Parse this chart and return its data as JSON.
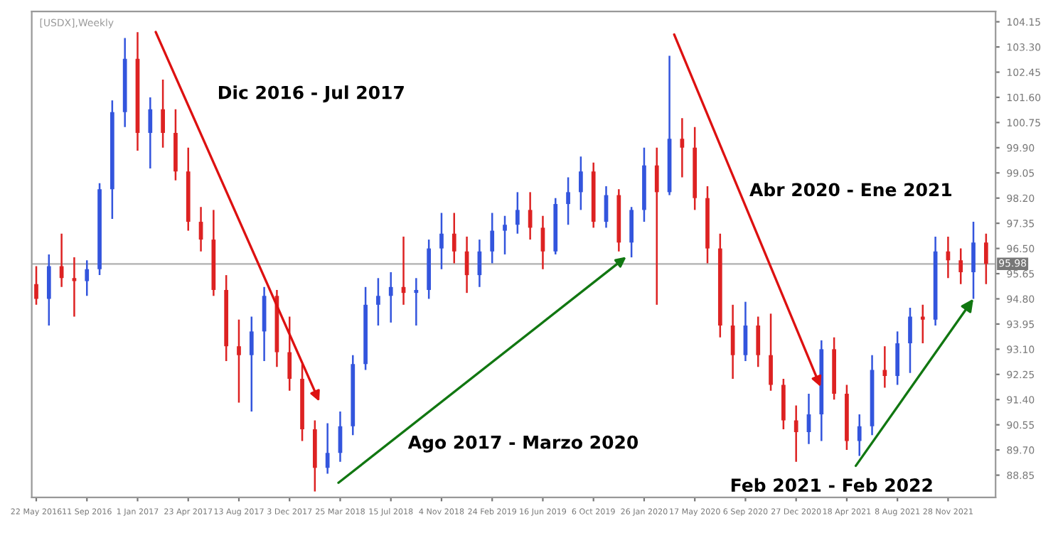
{
  "chart_data": {
    "type": "candlestick",
    "title": "[USDX],Weekly",
    "annotations": [
      "Dic 2016 - Jul 2017",
      "Abr 2020 - Ene 2021",
      "Ago 2017 - Marzo 2020",
      {
        "text": "Feb 2021 - Feb 2022",
        "x": "2022-01-23",
        "y": 94.8
      }
    ],
    "series": [
      {
        "color": "#3355dd",
        "x": [
          "2016-06-19",
          "2016-09-11",
          "2016-10-09",
          "2016-11-06",
          "2016-12-04",
          "2017-01-29",
          "2017-09-10",
          "2017-10-08",
          "2018-02-25",
          "2018-03-25",
          "2018-04-22",
          "2018-05-20",
          "2018-06-17",
          "2018-07-15",
          "2018-09-09",
          "2018-10-07",
          "2018-11-04",
          "2019-01-27",
          "2019-02-24",
          "2019-03-24",
          "2019-04-21",
          "2019-07-14",
          "2019-08-11",
          "2019-09-08",
          "2019-11-03",
          "2019-12-29",
          "2020-01-26",
          "2020-03-22",
          "2020-09-06",
          "2021-01-24",
          "2021-02-21",
          "2021-05-16",
          "2021-06-13",
          "2021-08-08",
          "2021-09-05",
          "2021-10-31",
          "2022-01-23"
        ],
        "ohlc": [
          [
            94.8,
            96.3,
            93.9,
            95.9
          ],
          [
            95.4,
            96.1,
            94.9,
            95.8
          ],
          [
            95.8,
            98.7,
            95.6,
            98.5
          ],
          [
            98.5,
            101.5,
            97.5,
            101.1
          ],
          [
            101.1,
            103.6,
            100.6,
            102.9
          ],
          [
            100.4,
            101.6,
            99.2,
            101.2
          ],
          [
            92.9,
            94.2,
            91.0,
            93.7
          ],
          [
            93.7,
            95.2,
            92.7,
            94.9
          ],
          [
            89.1,
            90.6,
            88.9,
            89.6
          ],
          [
            89.6,
            91.0,
            89.3,
            90.5
          ],
          [
            90.5,
            92.9,
            90.2,
            92.6
          ],
          [
            92.6,
            95.2,
            92.4,
            94.6
          ],
          [
            94.6,
            95.5,
            93.9,
            94.9
          ],
          [
            94.9,
            95.7,
            94.0,
            95.2
          ],
          [
            95.0,
            95.5,
            93.9,
            95.1
          ],
          [
            95.1,
            96.8,
            94.8,
            96.5
          ],
          [
            96.5,
            97.7,
            95.8,
            97.0
          ],
          [
            95.6,
            96.8,
            95.2,
            96.4
          ],
          [
            96.4,
            97.7,
            96.0,
            97.1
          ],
          [
            97.1,
            97.6,
            96.3,
            97.3
          ],
          [
            97.3,
            98.4,
            97.0,
            97.8
          ],
          [
            96.4,
            98.2,
            96.3,
            98.0
          ],
          [
            98.0,
            98.9,
            97.3,
            98.4
          ],
          [
            98.4,
            99.6,
            97.8,
            99.1
          ],
          [
            97.4,
            98.6,
            97.2,
            98.3
          ],
          [
            96.7,
            97.9,
            96.2,
            97.8
          ],
          [
            97.8,
            99.9,
            97.4,
            99.3
          ],
          [
            98.4,
            103.0,
            98.3,
            100.2
          ],
          [
            92.9,
            94.7,
            92.7,
            93.9
          ],
          [
            90.3,
            91.6,
            89.9,
            90.9
          ],
          [
            90.9,
            93.4,
            90.0,
            93.1
          ],
          [
            90.0,
            90.9,
            89.5,
            90.5
          ],
          [
            90.5,
            92.9,
            90.2,
            92.4
          ],
          [
            92.2,
            93.7,
            91.9,
            93.3
          ],
          [
            93.3,
            94.5,
            92.3,
            94.2
          ],
          [
            94.1,
            96.9,
            93.9,
            96.4
          ],
          [
            95.7,
            97.4,
            94.8,
            96.7
          ]
        ]
      },
      {
        "color": "#dd2222",
        "x": [
          "2016-05-22",
          "2016-07-17",
          "2016-08-14",
          "2017-01-01",
          "2017-02-26",
          "2017-03-26",
          "2017-04-23",
          "2017-05-21",
          "2017-06-18",
          "2017-07-16",
          "2017-08-13",
          "2017-11-05",
          "2017-12-03",
          "2017-12-31",
          "2018-01-28",
          "2018-08-12",
          "2018-12-02",
          "2018-12-30",
          "2019-05-19",
          "2019-06-16",
          "2019-10-06",
          "2019-12-01",
          "2020-02-23",
          "2020-04-19",
          "2020-05-17",
          "2020-06-14",
          "2020-07-12",
          "2020-08-09",
          "2020-10-04",
          "2020-11-01",
          "2020-11-29",
          "2020-12-27",
          "2021-03-21",
          "2021-04-18",
          "2021-07-11",
          "2021-10-03",
          "2021-11-28",
          "2021-12-26",
          "2022-02-20"
        ],
        "ohlc": [
          [
            95.3,
            95.9,
            94.6,
            94.8
          ],
          [
            95.9,
            97.0,
            95.2,
            95.5
          ],
          [
            95.5,
            96.2,
            94.2,
            95.4
          ],
          [
            102.9,
            103.8,
            99.8,
            100.4
          ],
          [
            101.2,
            102.2,
            99.9,
            100.4
          ],
          [
            100.4,
            101.2,
            98.8,
            99.1
          ],
          [
            99.1,
            99.9,
            97.1,
            97.4
          ],
          [
            97.4,
            97.9,
            96.4,
            96.8
          ],
          [
            96.8,
            97.8,
            94.9,
            95.1
          ],
          [
            95.1,
            95.6,
            92.7,
            93.2
          ],
          [
            93.2,
            94.1,
            91.3,
            92.9
          ],
          [
            94.9,
            95.1,
            92.5,
            93.0
          ],
          [
            93.0,
            94.2,
            91.7,
            92.1
          ],
          [
            92.1,
            92.6,
            90.0,
            90.4
          ],
          [
            90.4,
            90.7,
            88.3,
            89.1
          ],
          [
            95.2,
            96.9,
            94.6,
            95.0
          ],
          [
            97.0,
            97.7,
            96.0,
            96.4
          ],
          [
            96.4,
            96.9,
            95.0,
            95.6
          ],
          [
            97.8,
            98.4,
            96.8,
            97.2
          ],
          [
            97.2,
            97.6,
            95.8,
            96.4
          ],
          [
            99.1,
            99.4,
            97.2,
            97.4
          ],
          [
            98.3,
            98.5,
            96.4,
            96.7
          ],
          [
            99.3,
            99.9,
            94.6,
            98.4
          ],
          [
            100.2,
            100.9,
            98.9,
            99.9
          ],
          [
            99.9,
            100.6,
            97.8,
            98.2
          ],
          [
            98.2,
            98.6,
            96.0,
            96.5
          ],
          [
            96.5,
            97.0,
            93.5,
            93.9
          ],
          [
            93.9,
            94.6,
            92.1,
            92.9
          ],
          [
            93.9,
            94.2,
            92.5,
            92.9
          ],
          [
            92.9,
            94.3,
            91.7,
            91.9
          ],
          [
            91.9,
            92.1,
            90.4,
            90.7
          ],
          [
            90.7,
            91.2,
            89.3,
            90.3
          ],
          [
            93.1,
            93.5,
            91.4,
            91.6
          ],
          [
            91.6,
            91.9,
            89.7,
            90.0
          ],
          [
            92.4,
            93.2,
            91.8,
            92.2
          ],
          [
            94.2,
            94.6,
            93.3,
            94.1
          ],
          [
            96.4,
            96.9,
            95.5,
            96.1
          ],
          [
            96.1,
            96.5,
            95.3,
            95.7
          ],
          [
            96.7,
            97.0,
            95.3,
            95.98
          ]
        ]
      }
    ],
    "ylim": [
      88.1,
      104.5
    ],
    "yticks": [
      {
        "value": 104.15,
        "label": "104.15"
      },
      {
        "value": 103.3,
        "label": "103.30"
      },
      {
        "value": 102.45,
        "label": "102.45"
      },
      {
        "value": 101.6,
        "label": "101.60"
      },
      {
        "value": 100.75,
        "label": "100.75"
      },
      {
        "value": 99.9,
        "label": "99.90"
      },
      {
        "value": 99.05,
        "label": "99.05"
      },
      {
        "value": 98.2,
        "label": "98.20"
      },
      {
        "value": 97.35,
        "label": "97.35"
      },
      {
        "value": 96.5,
        "label": "96.50"
      },
      {
        "value": 95.65,
        "label": "95.65"
      },
      {
        "value": 94.8,
        "label": "94.80"
      },
      {
        "value": 93.95,
        "label": "93.95"
      },
      {
        "value": 93.1,
        "label": "93.10"
      },
      {
        "value": 92.25,
        "label": "92.25"
      },
      {
        "value": 91.4,
        "label": "91.40"
      },
      {
        "value": 90.55,
        "label": "90.55"
      },
      {
        "value": 89.7,
        "label": "89.70"
      },
      {
        "value": 88.85,
        "label": "88.85"
      }
    ],
    "xlim": [
      "2016-05-12",
      "2022-03-13"
    ],
    "xticks": [
      {
        "value": "2016-05-22",
        "label": "22 May 2016"
      },
      {
        "value": "2016-09-11",
        "label": "11 Sep 2016"
      },
      {
        "value": "2017-01-01",
        "label": "1 Jan 2017"
      },
      {
        "value": "2017-04-23",
        "label": "23 Apr 2017"
      },
      {
        "value": "2017-08-13",
        "label": "13 Aug 2017"
      },
      {
        "value": "2017-12-03",
        "label": "3 Dec 2017"
      },
      {
        "value": "2018-03-25",
        "label": "25 Mar 2018"
      },
      {
        "value": "2018-07-15",
        "label": "15 Jul 2018"
      },
      {
        "value": "2018-11-04",
        "label": "4 Nov 2018"
      },
      {
        "value": "2019-02-24",
        "label": "24 Feb 2019"
      },
      {
        "value": "2019-06-16",
        "label": "16 Jun 2019"
      },
      {
        "value": "2019-10-06",
        "label": "6 Oct 2019"
      },
      {
        "value": "2020-01-26",
        "label": "26 Jan 2020"
      },
      {
        "value": "2020-05-17",
        "label": "17 May 2020"
      },
      {
        "value": "2020-09-06",
        "label": "6 Sep 2020"
      },
      {
        "value": "2020-12-27",
        "label": "27 Dec 2020"
      },
      {
        "value": "2021-04-18",
        "label": "18 Apr 2021"
      },
      {
        "value": "2021-08-08",
        "label": "8 Aug 2021"
      },
      {
        "value": "2021-11-28",
        "label": "28 Nov 2021"
      }
    ],
    "ref_lines": [
      {
        "axis": "y",
        "value": 95.98,
        "label": "95.98",
        "color": "#b0b0b0"
      }
    ],
    "grid": false
  }
}
